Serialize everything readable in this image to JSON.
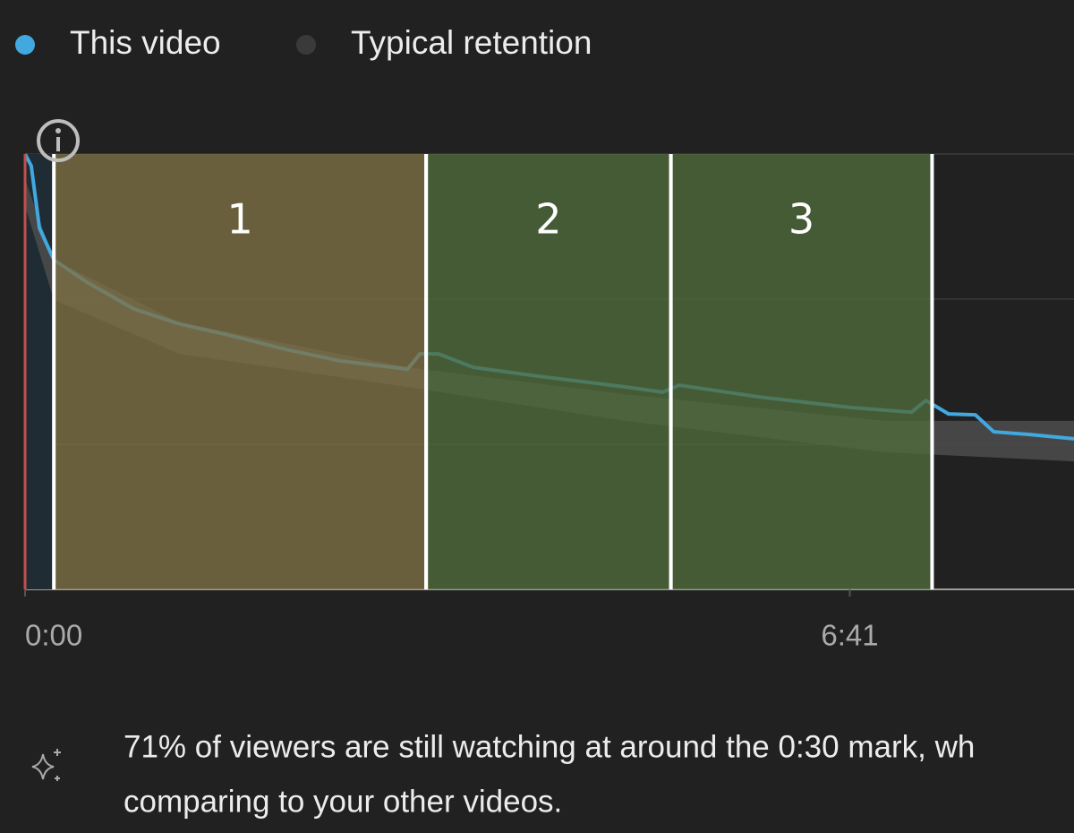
{
  "chart_data": {
    "type": "line",
    "series": [
      {
        "name": "This video",
        "color": "#41a9e0",
        "x": [
          0,
          3,
          7,
          14,
          30,
          53,
          75,
          101,
          127,
          153,
          186,
          192,
          201,
          218,
          249,
          292,
          310,
          318,
          357,
          401,
          431,
          438,
          449,
          462,
          471,
          488,
          510
        ],
        "values": [
          100,
          97.3,
          83,
          75.7,
          70.6,
          64.4,
          61,
          58.2,
          55.1,
          52.5,
          50.6,
          54.1,
          54.1,
          51,
          49,
          46.5,
          45.3,
          46.9,
          44.2,
          41.8,
          40.7,
          43.4,
          40.3,
          40.1,
          36.2,
          35.6,
          34.6
        ]
      },
      {
        "name": "Typical retention",
        "color": "#3b3b3b",
        "x": [
          0,
          14,
          75,
          186,
          292,
          418,
          510
        ],
        "high": [
          94.2,
          75.7,
          61.3,
          51,
          44.8,
          38.7,
          38.7
        ],
        "low": [
          88.1,
          66.5,
          54.1,
          46.5,
          38.7,
          31.5,
          29.4
        ]
      }
    ],
    "regions": [
      {
        "label": "1",
        "start": 14,
        "end": 195,
        "color": "#7f7144"
      },
      {
        "label": "2",
        "start": 195,
        "end": 314,
        "color": "#4f6b3b"
      },
      {
        "label": "3",
        "start": 314,
        "end": 441,
        "color": "#4f6b3b"
      }
    ],
    "xlim": [
      0,
      510
    ],
    "xticks": [
      {
        "value": 0,
        "label": "0:00"
      },
      {
        "value": 401,
        "label": "6:41"
      }
    ],
    "ylim": [
      0,
      100
    ],
    "yticks": [
      0,
      33.3,
      66.7,
      100
    ],
    "grid": true,
    "insight": [
      "71% of viewers are still watching at around the 0:30 mark, wh",
      "comparing to your other videos."
    ]
  }
}
